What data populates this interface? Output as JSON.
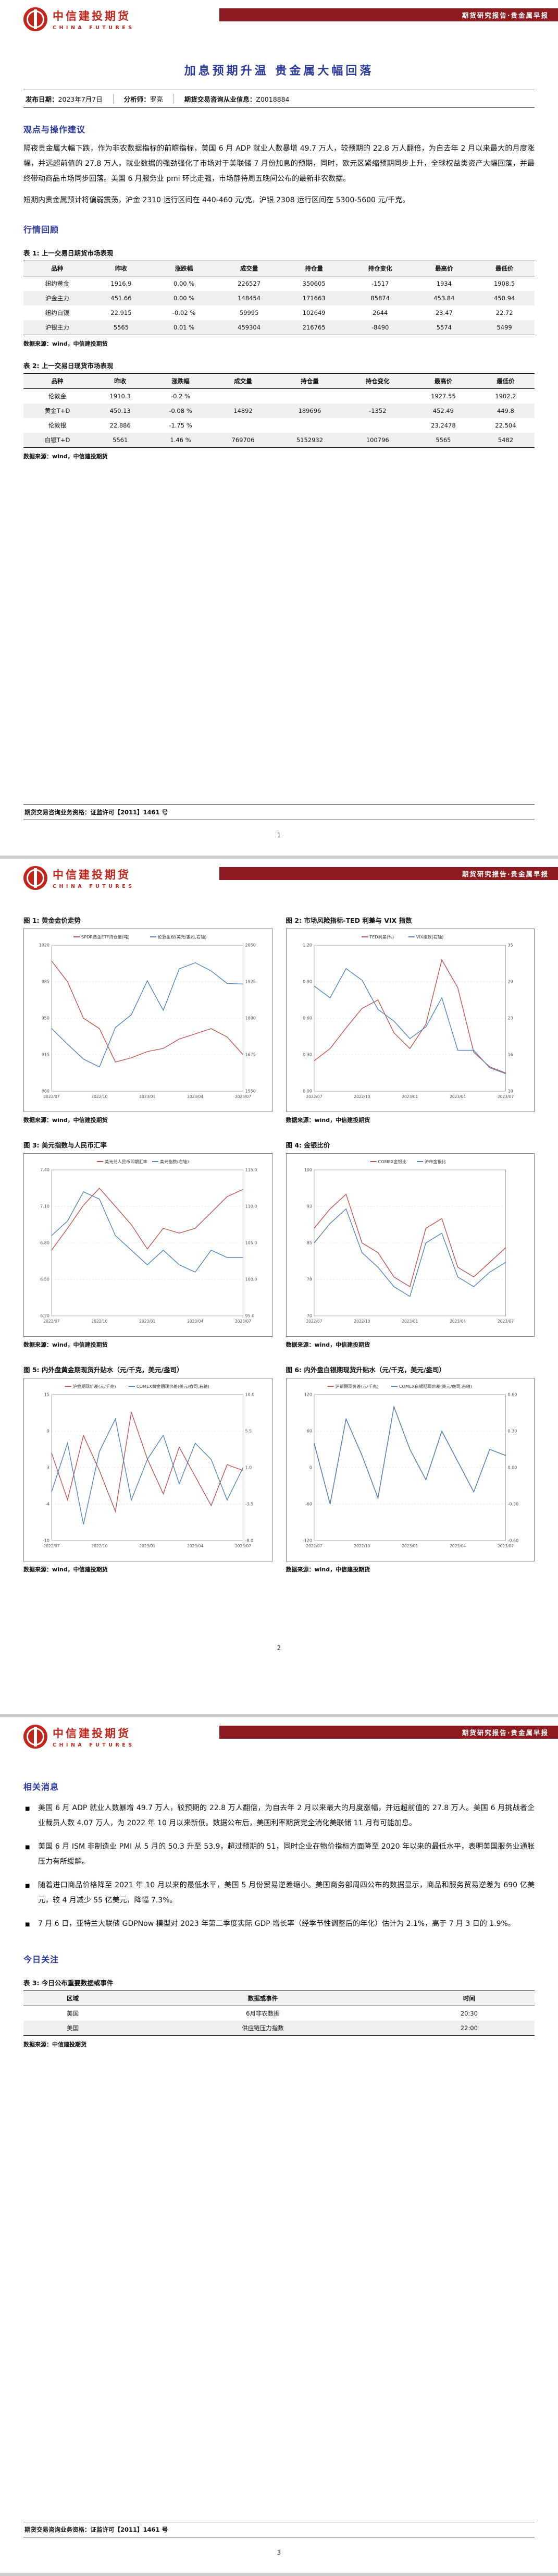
{
  "meta": {
    "brand_cn": "中信建投期货",
    "brand_en": "CHINA FUTURES",
    "header_banner": "期货研究报告·贵金属早报",
    "license": "期货交易咨询业务资格：证监许可【2011】1461 号"
  },
  "colors": {
    "brand_red": "#c1251c",
    "banner_maroon": "#8e1b20",
    "heading_blue": "#2b3a9b",
    "series_red": "#c0504d",
    "series_blue": "#4f81bd"
  },
  "page1": {
    "title": "加息预期升温 贵金属大幅回落",
    "info": {
      "publish_label": "发布日期：",
      "publish_date": "2023年7月7日",
      "analyst_label": "分析师：",
      "analyst": "罗亮",
      "cert_label": "期货交易咨询从业信息：",
      "cert": "Z0018884"
    },
    "views_heading": "观点与操作建议",
    "views_p1": "隔夜贵金属大幅下跌，作为非农数据指标的前瞻指标，美国 6 月 ADP 就业人数暴增 49.7 万人，较预期的 22.8 万人翻倍，为自去年 2 月以来最大的月度涨幅，并远超前值的 27.8 万人。就业数据的强劲强化了市场对于美联储 7 月份加息的预期，同时，欧元区紧缩预期同步上升，全球权益类资产大幅回落，并最终带动商品市场同步回落。美国 6 月服务业 pmi 环比走强，市场静待周五晚间公布的最新非农数据。",
    "views_p2": "短期内贵金属预计将偏弱震荡，沪金 2310 运行区间在 440-460 元/克，沪银 2308 运行区间在 5300-5600 元/千克。",
    "review_heading": "行情回顾",
    "table1": {
      "caption": "表 1: 上一交易日期货市场表现",
      "headers": [
        "品种",
        "昨收",
        "涨跌幅",
        "成交量",
        "持仓量",
        "持仓变化",
        "最高价",
        "最低价"
      ],
      "rows": [
        [
          "纽约黄金",
          "1916.9",
          "0.00 %",
          "226527",
          "350605",
          "-1517",
          "1934",
          "1908.5"
        ],
        [
          "沪金主力",
          "451.66",
          "0.00 %",
          "148454",
          "171663",
          "85874",
          "453.84",
          "450.94"
        ],
        [
          "纽约白银",
          "22.915",
          "-0.02 %",
          "59995",
          "102649",
          "2644",
          "23.47",
          "22.72"
        ],
        [
          "沪银主力",
          "5565",
          "0.01 %",
          "459304",
          "216765",
          "-8490",
          "5574",
          "5499"
        ]
      ],
      "source": "数据来源：wind，中信建投期货"
    },
    "table2": {
      "caption": "表 2: 上一交易日现货市场表现",
      "headers": [
        "品种",
        "昨收",
        "涨跌幅",
        "成交量",
        "持仓量",
        "持仓变化",
        "最高价",
        "最低价"
      ],
      "rows": [
        [
          "伦敦金",
          "1910.3",
          "-0.2 %",
          "",
          "",
          "",
          "1927.55",
          "1902.2"
        ],
        [
          "黄金T+D",
          "450.13",
          "-0.08 %",
          "14892",
          "189696",
          "-1352",
          "452.49",
          "449.8"
        ],
        [
          "伦敦银",
          "22.886",
          "-1.75 %",
          "",
          "",
          "",
          "23.2478",
          "22.504"
        ],
        [
          "白银T+D",
          "5561",
          "1.46 %",
          "769706",
          "5152932",
          "100796",
          "5565",
          "5482"
        ]
      ],
      "source": "数据来源：wind，中信建投期货"
    },
    "page_number": "1"
  },
  "page2": {
    "page_number": "2"
  },
  "page3": {
    "news_heading": "相关消息",
    "news": [
      "美国 6 月 ADP 就业人数暴增 49.7 万人，较预期的 22.8 万人翻倍，为自去年 2 月以来最大的月度涨幅，并远超前值的 27.8 万人。美国 6 月挑战者企业裁员人数 4.07 万人，为 2022 年 10 月以来新低。数据公布后，美国利率期货完全消化美联储 11 月有可能加息。",
      "美国 6 月 ISM 非制造业 PMI 从 5 月的 50.3 升至 53.9，超过预期的 51，同时企业在物价指标方面降至 2020 年以来的最低水平，表明美国服务业通胀压力有所缓解。",
      "随着进口商品价格降至 2021 年 10 月以来的最低水平，美国 5 月份贸易逆差缩小。美国商务部周四公布的数据显示，商品和服务贸易逆差为 690 亿美元，较 4 月减少 55 亿美元，降幅 7.3%。",
      "7 月 6 日，亚特兰大联储 GDPNow 模型对 2023 年第二季度实际 GDP 增长率（经季节性调整后的年化）估计为 2.1%，高于 7 月 3 日的 1.9%。"
    ],
    "focus_heading": "今日关注",
    "table3": {
      "caption": "表 3: 今日公布重要数据或事件",
      "headers": [
        "区域",
        "数据或事件",
        "时间"
      ],
      "rows": [
        [
          "美国",
          "6月非农数据",
          "20:30"
        ],
        [
          "美国",
          "供应链压力指数",
          "22:00"
        ]
      ],
      "source": "数据来源：中信建投期货"
    },
    "page_number": "3"
  },
  "chart_data": [
    {
      "type": "line",
      "title": "图 1: 黄金金价走势",
      "x": [
        "2022/07",
        "2022/08",
        "2022/09",
        "2022/10",
        "2022/11",
        "2022/12",
        "2023/01",
        "2023/02",
        "2023/03",
        "2023/04",
        "2023/05",
        "2023/06",
        "2023/07"
      ],
      "series": [
        {
          "name": "SPDR黄金ETF持仓量(吨)",
          "color": "#c0504d",
          "axis": "left",
          "values": [
            1005,
            985,
            950,
            940,
            908,
            912,
            918,
            921,
            930,
            935,
            940,
            932,
            915
          ]
        },
        {
          "name": "伦敦金现(美元/盎司,右轴)",
          "color": "#4f81bd",
          "axis": "right",
          "values": [
            1765,
            1711,
            1660,
            1633,
            1768,
            1812,
            1928,
            1827,
            1969,
            1990,
            1962,
            1919,
            1917
          ]
        }
      ],
      "ylim_left": [
        880,
        1020
      ],
      "ylim_right": [
        1550,
        2050
      ],
      "grid": true,
      "legend_position": "top",
      "source": "数据来源：wind，中信建投期货"
    },
    {
      "type": "line",
      "title": "图 2: 市场风险指标-TED 利差与 VIX 指数",
      "x": [
        "2022/07",
        "2022/08",
        "2022/09",
        "2022/10",
        "2022/11",
        "2022/12",
        "2023/01",
        "2023/02",
        "2023/03",
        "2023/04",
        "2023/05",
        "2023/06",
        "2023/07"
      ],
      "series": [
        {
          "name": "TED利差(%)",
          "color": "#c0504d",
          "axis": "left",
          "values": [
            0.25,
            0.35,
            0.52,
            0.68,
            0.75,
            0.48,
            0.35,
            0.55,
            1.08,
            0.85,
            0.32,
            0.2,
            0.15
          ]
        },
        {
          "name": "VIX指数(右轴)",
          "color": "#4f81bd",
          "axis": "right",
          "values": [
            28,
            26,
            31,
            29,
            24,
            22,
            19,
            21,
            26,
            17,
            17,
            14,
            13
          ]
        }
      ],
      "ylim_left": [
        0,
        1.2
      ],
      "ylim_right": [
        10,
        35
      ],
      "grid": true,
      "legend_position": "top",
      "source": "数据来源：wind，中信建投期货"
    },
    {
      "type": "line",
      "title": "图 3: 美元指数与人民币汇率",
      "x": [
        "2022/07",
        "2022/08",
        "2022/09",
        "2022/10",
        "2022/11",
        "2022/12",
        "2023/01",
        "2023/02",
        "2023/03",
        "2023/04",
        "2023/05",
        "2023/06",
        "2023/07"
      ],
      "series": [
        {
          "name": "美元兑人民币即期汇率",
          "color": "#c0504d",
          "axis": "left",
          "values": [
            6.74,
            6.92,
            7.11,
            7.25,
            7.1,
            6.95,
            6.75,
            6.92,
            6.88,
            6.92,
            7.05,
            7.18,
            7.24
          ]
        },
        {
          "name": "美元指数(右轴)",
          "color": "#4f81bd",
          "axis": "right",
          "values": [
            106,
            108,
            112,
            111,
            106,
            104,
            102,
            104,
            102,
            101,
            104,
            103,
            103
          ]
        }
      ],
      "ylim_left": [
        6.2,
        7.4
      ],
      "ylim_right": [
        95,
        115
      ],
      "grid": true,
      "legend_position": "top",
      "source": "数据来源：wind，中信建投期货"
    },
    {
      "type": "line",
      "title": "图 4: 金银比价",
      "x": [
        "2022/07",
        "2022/08",
        "2022/09",
        "2022/10",
        "2022/11",
        "2022/12",
        "2023/01",
        "2023/02",
        "2023/03",
        "2023/04",
        "2023/05",
        "2023/06",
        "2023/07"
      ],
      "series": [
        {
          "name": "COMEX金银比",
          "color": "#c0504d",
          "axis": "left",
          "values": [
            88,
            92,
            95,
            85,
            83,
            78,
            76,
            88,
            90,
            80,
            78,
            81,
            84
          ]
        },
        {
          "name": "沪市金银比",
          "color": "#4f81bd",
          "axis": "left",
          "values": [
            85,
            89,
            92,
            83,
            80,
            76,
            74,
            85,
            87,
            78,
            76,
            79,
            81
          ]
        }
      ],
      "ylim_left": [
        70,
        100
      ],
      "grid": true,
      "legend_position": "top",
      "source": "数据来源：wind，中信建投期货"
    },
    {
      "type": "line",
      "title": "图 5: 内外盘黄金期现货升贴水（元/千克，美元/盎司）",
      "x": [
        "2022/07",
        "2022/08",
        "2022/09",
        "2022/10",
        "2022/11",
        "2022/12",
        "2023/01",
        "2023/02",
        "2023/03",
        "2023/04",
        "2023/05",
        "2023/06",
        "2023/07"
      ],
      "series": [
        {
          "name": "沪金期现价差(元/千克)",
          "color": "#c0504d",
          "axis": "left",
          "values": [
            5,
            -3,
            8,
            2,
            -5,
            12,
            4,
            -2,
            6,
            1,
            -4,
            3,
            2
          ]
        },
        {
          "name": "COMEX黄金期现价差(美元/盎司,右轴)",
          "color": "#4f81bd",
          "axis": "right",
          "values": [
            -2,
            4,
            -6,
            3,
            7,
            -3,
            2,
            5,
            -1,
            4,
            2,
            -3,
            1
          ]
        }
      ],
      "ylim_left": [
        -10,
        15
      ],
      "ylim_right": [
        -8,
        10
      ],
      "grid": true,
      "legend_position": "top",
      "source": "数据来源：wind，中信建投期货"
    },
    {
      "type": "line",
      "title": "图 6: 内外盘白银期现货升贴水（元/千克，美元/盎司）",
      "x": [
        "2022/07",
        "2022/08",
        "2022/09",
        "2022/10",
        "2022/11",
        "2022/12",
        "2023/01",
        "2023/02",
        "2023/03",
        "2023/04",
        "2023/05",
        "2023/06",
        "2023/07"
      ],
      "series": [
        {
          "name": "沪银期现价差(元/千克)",
          "color": "#c0504d",
          "axis": "left",
          "values": [
            40,
            -60,
            80,
            20,
            -50,
            100,
            30,
            -20,
            60,
            10,
            -40,
            30,
            20
          ]
        },
        {
          "name": "COMEX白银期现价差(美元/盎司,右轴)",
          "color": "#4f81bd",
          "axis": "right",
          "values": [
            0.2,
            -0.3,
            0.4,
            0.1,
            -0.25,
            0.5,
            0.15,
            -0.1,
            0.3,
            0.05,
            -0.2,
            0.15,
            0.1
          ]
        }
      ],
      "ylim_left": [
        -120,
        120
      ],
      "ylim_right": [
        -0.6,
        0.6
      ],
      "grid": true,
      "legend_position": "top",
      "source": "数据来源：wind，中信建投期货"
    }
  ]
}
